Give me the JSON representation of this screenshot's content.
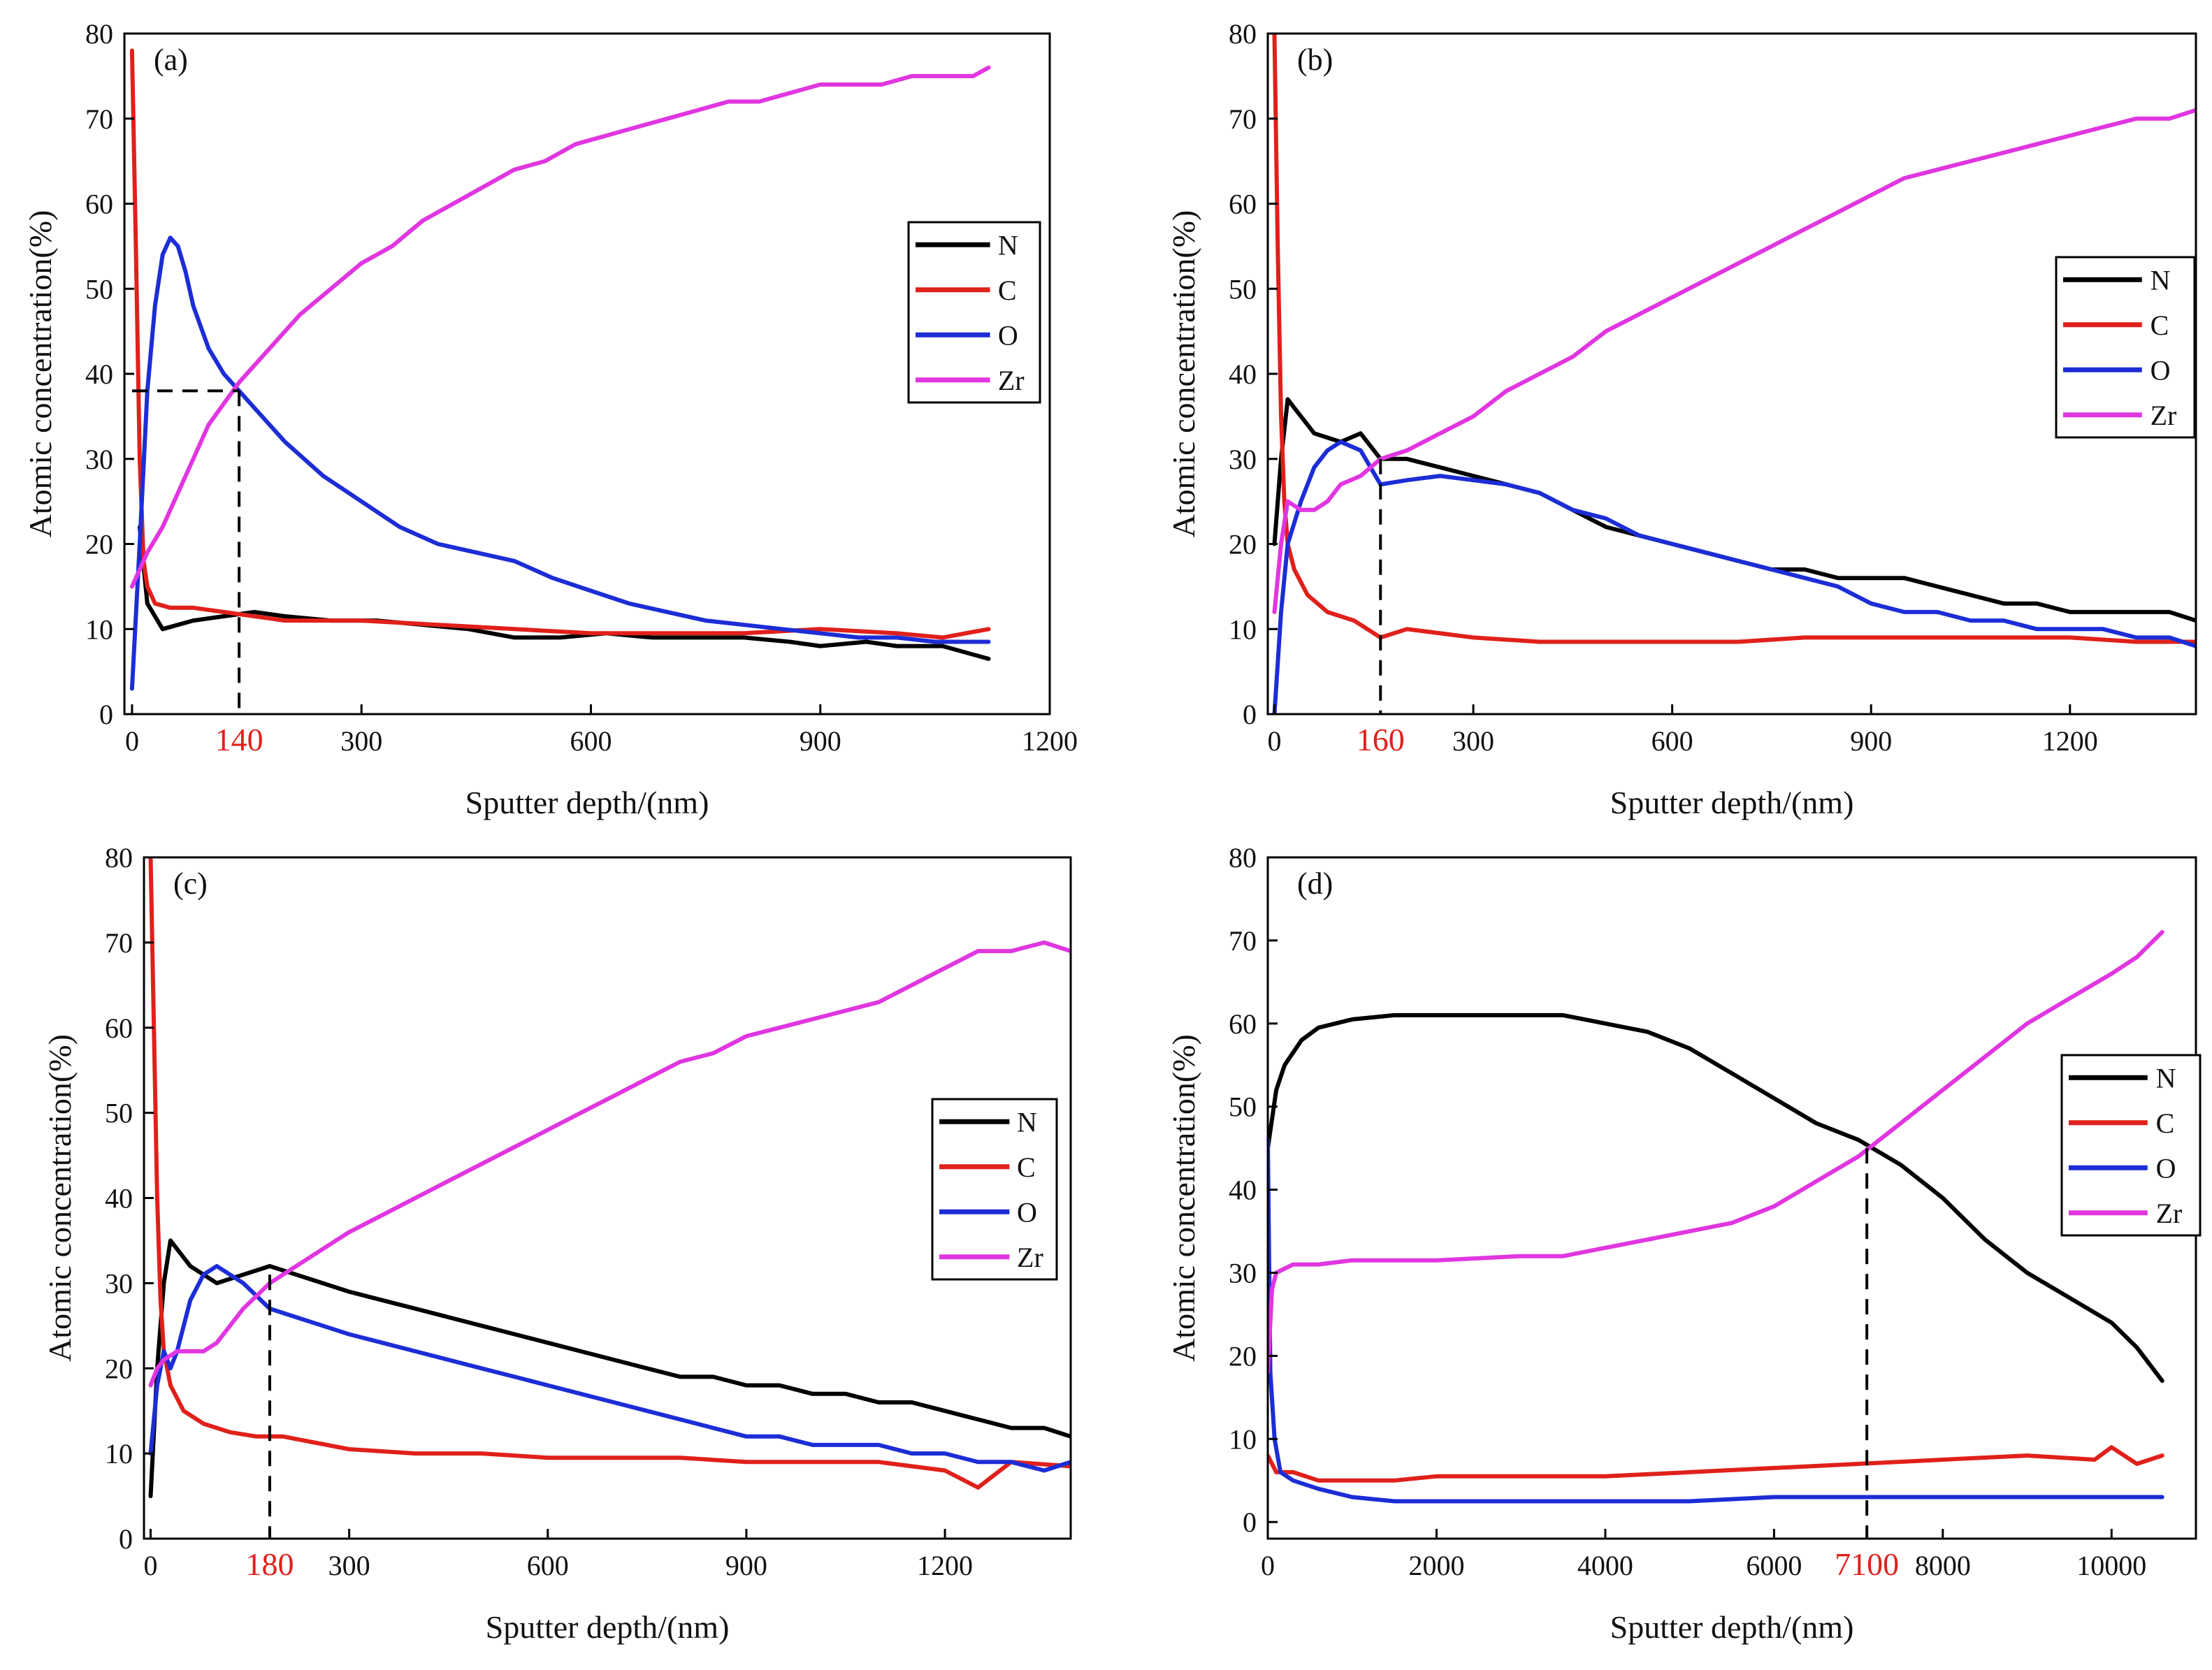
{
  "figure": {
    "colors": {
      "N": "#000000",
      "C": "#e0201b",
      "O": "#1c2dd6",
      "Zr": "#e036e0",
      "marker": "#e0201b"
    },
    "x_label": "Sputter depth/(nm)",
    "y_label": "Atomic concentration(%)"
  },
  "chart_data": [
    {
      "type": "line",
      "title": "(a)",
      "xlabel": "Sputter depth/(nm)",
      "ylabel": "Atomic concentration(%)",
      "xlim": [
        -10,
        1200
      ],
      "ylim": [
        0,
        80
      ],
      "xticks": [
        0,
        300,
        600,
        900,
        1200
      ],
      "yticks": [
        0,
        10,
        20,
        30,
        40,
        50,
        60,
        70,
        80
      ],
      "marker_label": "140",
      "marker": {
        "x": 140,
        "y": 38,
        "horizontal_from": 0
      },
      "legend": [
        "N",
        "C",
        "O",
        "Zr"
      ],
      "series": [
        {
          "name": "N",
          "color": "#000000",
          "x": [
            10,
            20,
            40,
            60,
            80,
            120,
            160,
            200,
            260,
            320,
            380,
            440,
            500,
            560,
            620,
            680,
            740,
            800,
            860,
            900,
            960,
            1000,
            1060,
            1120
          ],
          "y": [
            22,
            13,
            10,
            10.5,
            11,
            11.5,
            12,
            11.5,
            11,
            11,
            10.5,
            10,
            9,
            9,
            9.5,
            9,
            9,
            9,
            8.5,
            8,
            8.5,
            8,
            8,
            6.5
          ]
        },
        {
          "name": "C",
          "color": "#e0201b",
          "x": [
            0,
            5,
            10,
            15,
            20,
            30,
            50,
            80,
            120,
            200,
            300,
            400,
            500,
            600,
            700,
            800,
            900,
            1000,
            1060,
            1120
          ],
          "y": [
            78,
            55,
            30,
            18,
            15,
            13,
            12.5,
            12.5,
            12,
            11,
            11,
            10.5,
            10,
            9.5,
            9.5,
            9.5,
            10,
            9.5,
            9,
            10
          ]
        },
        {
          "name": "O",
          "color": "#1c2dd6",
          "x": [
            0,
            10,
            20,
            30,
            40,
            50,
            60,
            70,
            80,
            100,
            120,
            140,
            160,
            200,
            250,
            300,
            350,
            400,
            450,
            500,
            550,
            600,
            650,
            700,
            750,
            800,
            850,
            900,
            950,
            1000,
            1050,
            1120
          ],
          "y": [
            3,
            20,
            38,
            48,
            54,
            56,
            55,
            52,
            48,
            43,
            40,
            38,
            36,
            32,
            28,
            25,
            22,
            20,
            19,
            18,
            16,
            14.5,
            13,
            12,
            11,
            10.5,
            10,
            9.5,
            9,
            9,
            8.5,
            8.5
          ]
        },
        {
          "name": "Zr",
          "color": "#e036e0",
          "x": [
            0,
            10,
            20,
            40,
            60,
            80,
            100,
            140,
            180,
            220,
            260,
            300,
            340,
            380,
            420,
            460,
            500,
            540,
            580,
            620,
            660,
            700,
            740,
            780,
            820,
            860,
            900,
            940,
            980,
            1020,
            1060,
            1100,
            1120
          ],
          "y": [
            15,
            17,
            19,
            22,
            26,
            30,
            34,
            39,
            43,
            47,
            50,
            53,
            55,
            58,
            60,
            62,
            64,
            65,
            67,
            68,
            69,
            70,
            71,
            72,
            72,
            73,
            74,
            74,
            74,
            75,
            75,
            75,
            76
          ]
        }
      ]
    },
    {
      "type": "line",
      "title": "(b)",
      "xlabel": "Sputter depth/(nm)",
      "ylabel": "Atomic concentration(%)",
      "xlim": [
        -10,
        1390
      ],
      "ylim": [
        0,
        80
      ],
      "xticks": [
        0,
        300,
        600,
        900,
        1200
      ],
      "yticks": [
        0,
        10,
        20,
        30,
        40,
        50,
        60,
        70,
        80
      ],
      "marker_label": "160",
      "marker": {
        "x": 160,
        "y": 30
      },
      "legend": [
        "N",
        "C",
        "O",
        "Zr"
      ],
      "series": [
        {
          "name": "N",
          "color": "#000000",
          "x": [
            0,
            10,
            20,
            30,
            60,
            100,
            130,
            160,
            200,
            250,
            300,
            350,
            400,
            450,
            500,
            550,
            600,
            650,
            700,
            750,
            800,
            850,
            900,
            950,
            1000,
            1050,
            1100,
            1150,
            1200,
            1250,
            1300,
            1350,
            1390
          ],
          "y": [
            20,
            30,
            37,
            36,
            33,
            32,
            33,
            30,
            30,
            29,
            28,
            27,
            26,
            24,
            22,
            21,
            20,
            19,
            18,
            17,
            17,
            16,
            16,
            16,
            15,
            14,
            13,
            13,
            12,
            12,
            12,
            12,
            11
          ]
        },
        {
          "name": "C",
          "color": "#e0201b",
          "x": [
            0,
            5,
            10,
            15,
            20,
            30,
            50,
            80,
            120,
            160,
            200,
            300,
            400,
            500,
            600,
            700,
            800,
            900,
            1000,
            1100,
            1200,
            1300,
            1390
          ],
          "y": [
            80,
            55,
            35,
            25,
            20,
            17,
            14,
            12,
            11,
            9,
            10,
            9,
            8.5,
            8.5,
            8.5,
            8.5,
            9,
            9,
            9,
            9,
            9,
            8.5,
            8.5
          ]
        },
        {
          "name": "O",
          "color": "#1c2dd6",
          "x": [
            0,
            10,
            20,
            40,
            60,
            80,
            100,
            130,
            160,
            200,
            250,
            300,
            350,
            400,
            450,
            500,
            550,
            600,
            650,
            700,
            750,
            800,
            850,
            900,
            950,
            1000,
            1050,
            1100,
            1150,
            1200,
            1250,
            1300,
            1350,
            1390
          ],
          "y": [
            0,
            12,
            20,
            25,
            29,
            31,
            32,
            31,
            27,
            27.5,
            28,
            27.5,
            27,
            26,
            24,
            23,
            21,
            20,
            19,
            18,
            17,
            16,
            15,
            13,
            12,
            12,
            11,
            11,
            10,
            10,
            10,
            9,
            9,
            8
          ]
        },
        {
          "name": "Zr",
          "color": "#e036e0",
          "x": [
            0,
            10,
            20,
            40,
            60,
            80,
            100,
            130,
            160,
            200,
            250,
            300,
            350,
            400,
            450,
            500,
            550,
            600,
            650,
            700,
            750,
            800,
            850,
            900,
            950,
            1000,
            1050,
            1100,
            1150,
            1200,
            1250,
            1300,
            1350,
            1390
          ],
          "y": [
            12,
            20,
            25,
            24,
            24,
            25,
            27,
            28,
            30,
            31,
            33,
            35,
            38,
            40,
            42,
            45,
            47,
            49,
            51,
            53,
            55,
            57,
            59,
            61,
            63,
            64,
            65,
            66,
            67,
            68,
            69,
            70,
            70,
            71
          ]
        }
      ]
    },
    {
      "type": "line",
      "title": "(c)",
      "xlabel": "Sputter depth/(nm)",
      "ylabel": "Atomic concentration(%)",
      "xlim": [
        -10,
        1390
      ],
      "ylim": [
        0,
        80
      ],
      "xticks": [
        0,
        300,
        600,
        900,
        1200
      ],
      "yticks": [
        0,
        10,
        20,
        30,
        40,
        50,
        60,
        70,
        80
      ],
      "marker_label": "180",
      "marker": {
        "x": 180,
        "y": 31
      },
      "legend": [
        "N",
        "C",
        "O",
        "Zr"
      ],
      "series": [
        {
          "name": "N",
          "color": "#000000",
          "x": [
            0,
            10,
            20,
            30,
            40,
            60,
            100,
            140,
            180,
            220,
            260,
            300,
            350,
            400,
            450,
            500,
            550,
            600,
            650,
            700,
            750,
            800,
            850,
            900,
            950,
            1000,
            1050,
            1100,
            1150,
            1200,
            1250,
            1300,
            1350,
            1390
          ],
          "y": [
            5,
            20,
            30,
            35,
            34,
            32,
            30,
            31,
            32,
            31,
            30,
            29,
            28,
            27,
            26,
            25,
            24,
            23,
            22,
            21,
            20,
            19,
            19,
            18,
            18,
            17,
            17,
            16,
            16,
            15,
            14,
            13,
            13,
            12
          ]
        },
        {
          "name": "C",
          "color": "#e0201b",
          "x": [
            0,
            5,
            10,
            15,
            20,
            30,
            50,
            80,
            120,
            160,
            200,
            300,
            400,
            500,
            600,
            700,
            800,
            900,
            1000,
            1100,
            1200,
            1250,
            1300,
            1390
          ],
          "y": [
            80,
            60,
            40,
            28,
            22,
            18,
            15,
            13.5,
            12.5,
            12,
            12,
            10.5,
            10,
            10,
            9.5,
            9.5,
            9.5,
            9,
            9,
            9,
            8,
            6,
            9,
            8.5
          ]
        },
        {
          "name": "O",
          "color": "#1c2dd6",
          "x": [
            0,
            10,
            20,
            30,
            40,
            60,
            80,
            100,
            140,
            180,
            220,
            260,
            300,
            350,
            400,
            450,
            500,
            550,
            600,
            650,
            700,
            750,
            800,
            850,
            900,
            950,
            1000,
            1050,
            1100,
            1150,
            1200,
            1250,
            1300,
            1350,
            1390
          ],
          "y": [
            10,
            18,
            22,
            20,
            22,
            28,
            31,
            32,
            30,
            27,
            26,
            25,
            24,
            23,
            22,
            21,
            20,
            19,
            18,
            17,
            16,
            15,
            14,
            13,
            12,
            12,
            11,
            11,
            11,
            10,
            10,
            9,
            9,
            8,
            9
          ]
        },
        {
          "name": "Zr",
          "color": "#e036e0",
          "x": [
            0,
            10,
            20,
            40,
            60,
            80,
            100,
            140,
            180,
            220,
            260,
            300,
            350,
            400,
            450,
            500,
            550,
            600,
            650,
            700,
            750,
            800,
            850,
            900,
            950,
            1000,
            1050,
            1100,
            1150,
            1200,
            1250,
            1300,
            1350,
            1390
          ],
          "y": [
            18,
            20,
            21,
            22,
            22,
            22,
            23,
            27,
            30,
            32,
            34,
            36,
            38,
            40,
            42,
            44,
            46,
            48,
            50,
            52,
            54,
            56,
            57,
            59,
            60,
            61,
            62,
            63,
            65,
            67,
            69,
            69,
            70,
            69
          ]
        }
      ]
    },
    {
      "type": "line",
      "title": "(d)",
      "xlabel": "Sputter depth/(nm)",
      "ylabel": "Atomic concentration(%)",
      "xlim": [
        0,
        11000
      ],
      "ylim": [
        -2,
        80
      ],
      "xticks": [
        0,
        2000,
        4000,
        6000,
        8000,
        10000
      ],
      "yticks": [
        0,
        10,
        20,
        30,
        40,
        50,
        60,
        70,
        80
      ],
      "marker_label": "7100",
      "marker": {
        "x": 7100,
        "y": 45
      },
      "legend": [
        "N",
        "C",
        "O",
        "Zr"
      ],
      "series": [
        {
          "name": "N",
          "color": "#000000",
          "x": [
            0,
            100,
            200,
            400,
            600,
            800,
            1000,
            1500,
            2000,
            2500,
            3000,
            3500,
            4000,
            4500,
            5000,
            5500,
            6000,
            6500,
            7000,
            7500,
            8000,
            8500,
            9000,
            9500,
            10000,
            10300,
            10600
          ],
          "y": [
            45,
            52,
            55,
            58,
            59.5,
            60,
            60.5,
            61,
            61,
            61,
            61,
            61,
            60,
            59,
            57,
            54,
            51,
            48,
            46,
            43,
            39,
            34,
            30,
            27,
            24,
            21,
            17
          ]
        },
        {
          "name": "C",
          "color": "#e0201b",
          "x": [
            0,
            100,
            300,
            600,
            1000,
            1500,
            2000,
            3000,
            4000,
            5000,
            6000,
            7000,
            8000,
            9000,
            9800,
            10000,
            10300,
            10600
          ],
          "y": [
            8,
            6,
            6,
            5,
            5,
            5,
            5.5,
            5.5,
            5.5,
            6,
            6.5,
            7,
            7.5,
            8,
            7.5,
            9,
            7,
            8
          ]
        },
        {
          "name": "O",
          "color": "#1c2dd6",
          "x": [
            0,
            30,
            80,
            150,
            300,
            600,
            1000,
            1500,
            2000,
            3000,
            4000,
            5000,
            6000,
            7000,
            8000,
            9000,
            10000,
            10600
          ],
          "y": [
            46,
            18,
            10,
            6,
            5,
            4,
            3,
            2.5,
            2.5,
            2.5,
            2.5,
            2.5,
            3,
            3,
            3,
            3,
            3,
            3
          ]
        },
        {
          "name": "Zr",
          "color": "#e036e0",
          "x": [
            0,
            50,
            100,
            300,
            600,
            1000,
            1500,
            2000,
            3000,
            3500,
            4000,
            4500,
            5000,
            5500,
            6000,
            6500,
            7000,
            7500,
            8000,
            8500,
            9000,
            9500,
            10000,
            10300,
            10600
          ],
          "y": [
            18,
            28,
            30,
            31,
            31,
            31.5,
            31.5,
            31.5,
            32,
            32,
            33,
            34,
            35,
            36,
            38,
            41,
            44,
            48,
            52,
            56,
            60,
            63,
            66,
            68,
            71
          ]
        }
      ]
    }
  ]
}
